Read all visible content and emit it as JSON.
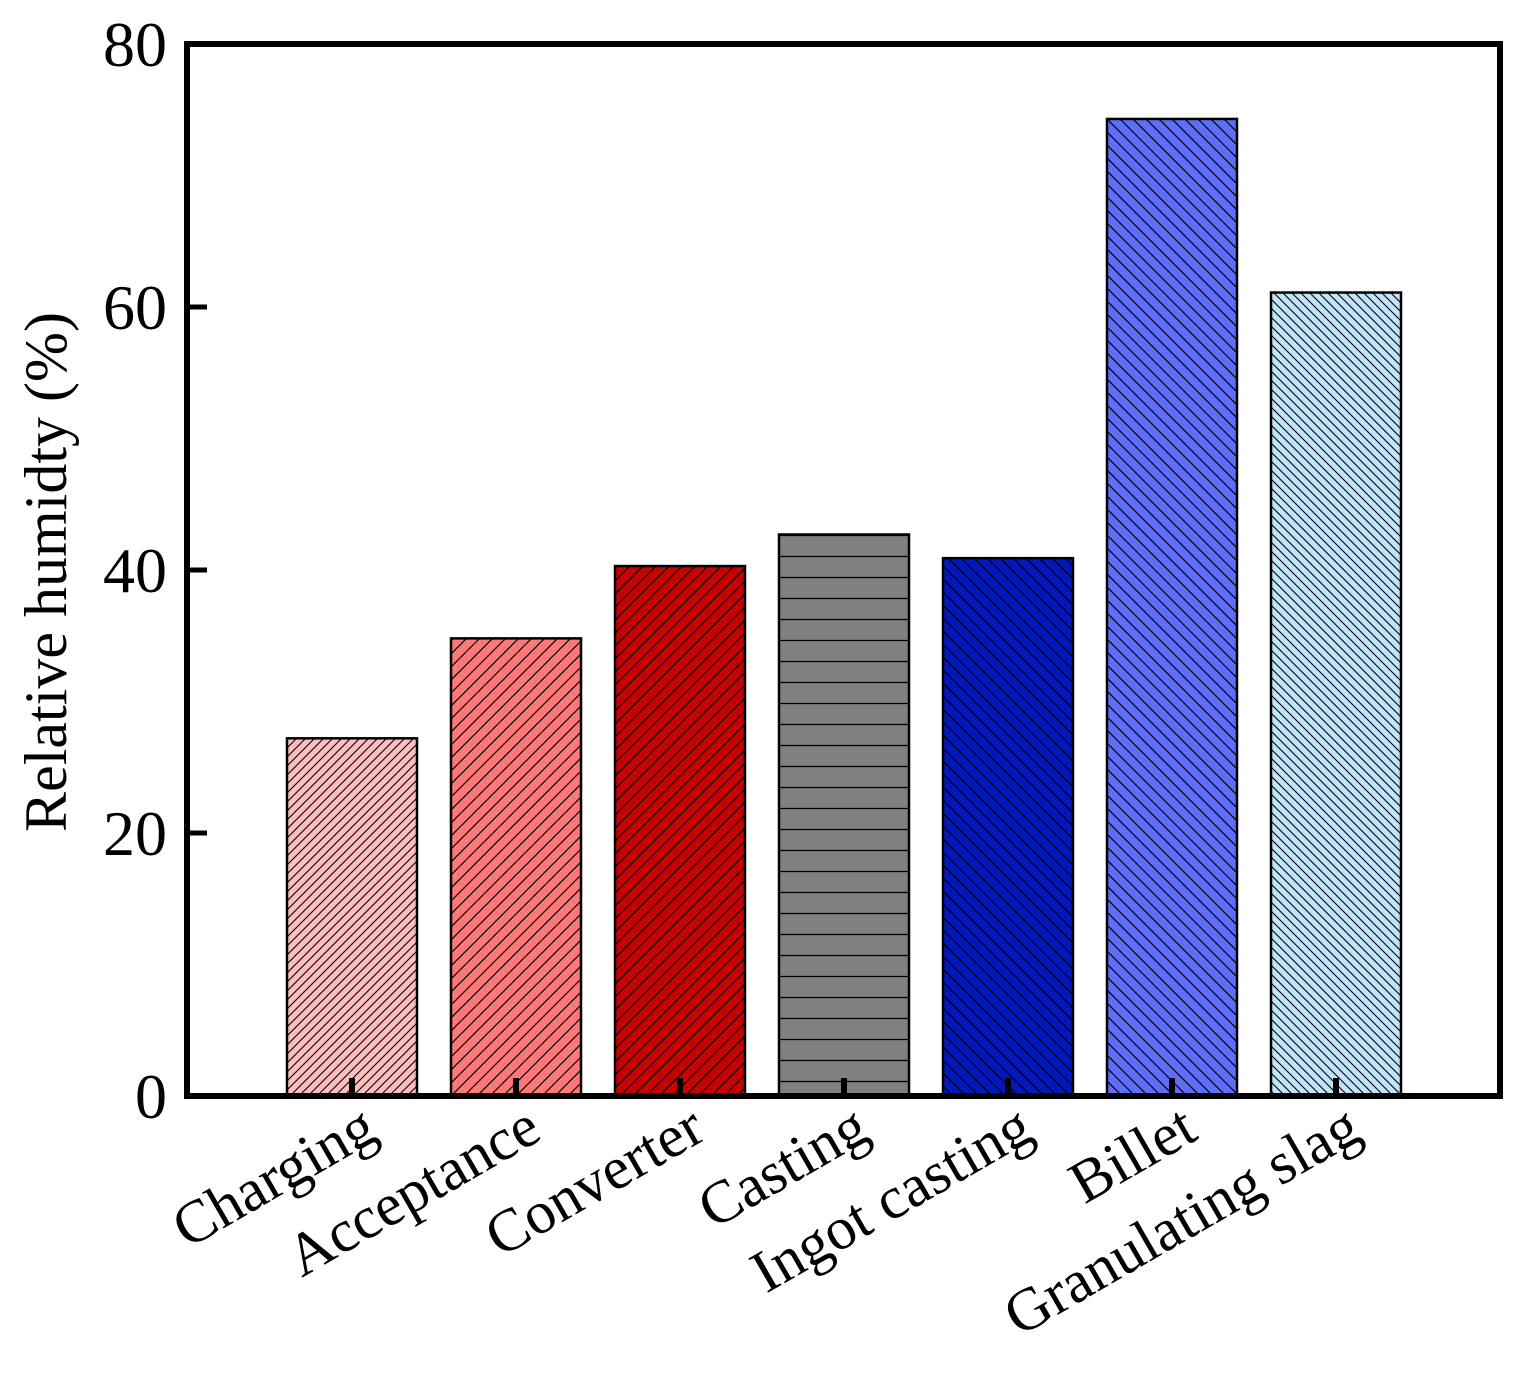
{
  "chart_data": {
    "type": "bar",
    "title": "",
    "xlabel": "",
    "ylabel": "Relative humidty (%)",
    "ylim": [
      0,
      80
    ],
    "yticks": [
      0,
      20,
      40,
      60,
      80
    ],
    "grid": false,
    "categories": [
      "Charging",
      "Acceptance",
      "Converter",
      "Casting",
      "Ingot casting",
      "Billet",
      "Granulating  slag"
    ],
    "values": [
      27.2,
      34.8,
      40.3,
      42.7,
      40.9,
      74.3,
      61.1
    ],
    "colors": [
      "#FFBEBE",
      "#FF7878",
      "#C80000",
      "#808080",
      "#0018BD",
      "#5E6EFB",
      "#C2E4FA"
    ],
    "hatches": [
      "diag-up-fine",
      "diag-up",
      "diag-up",
      "horizontal",
      "diag-down",
      "diag-down",
      "diag-down-fine"
    ]
  }
}
